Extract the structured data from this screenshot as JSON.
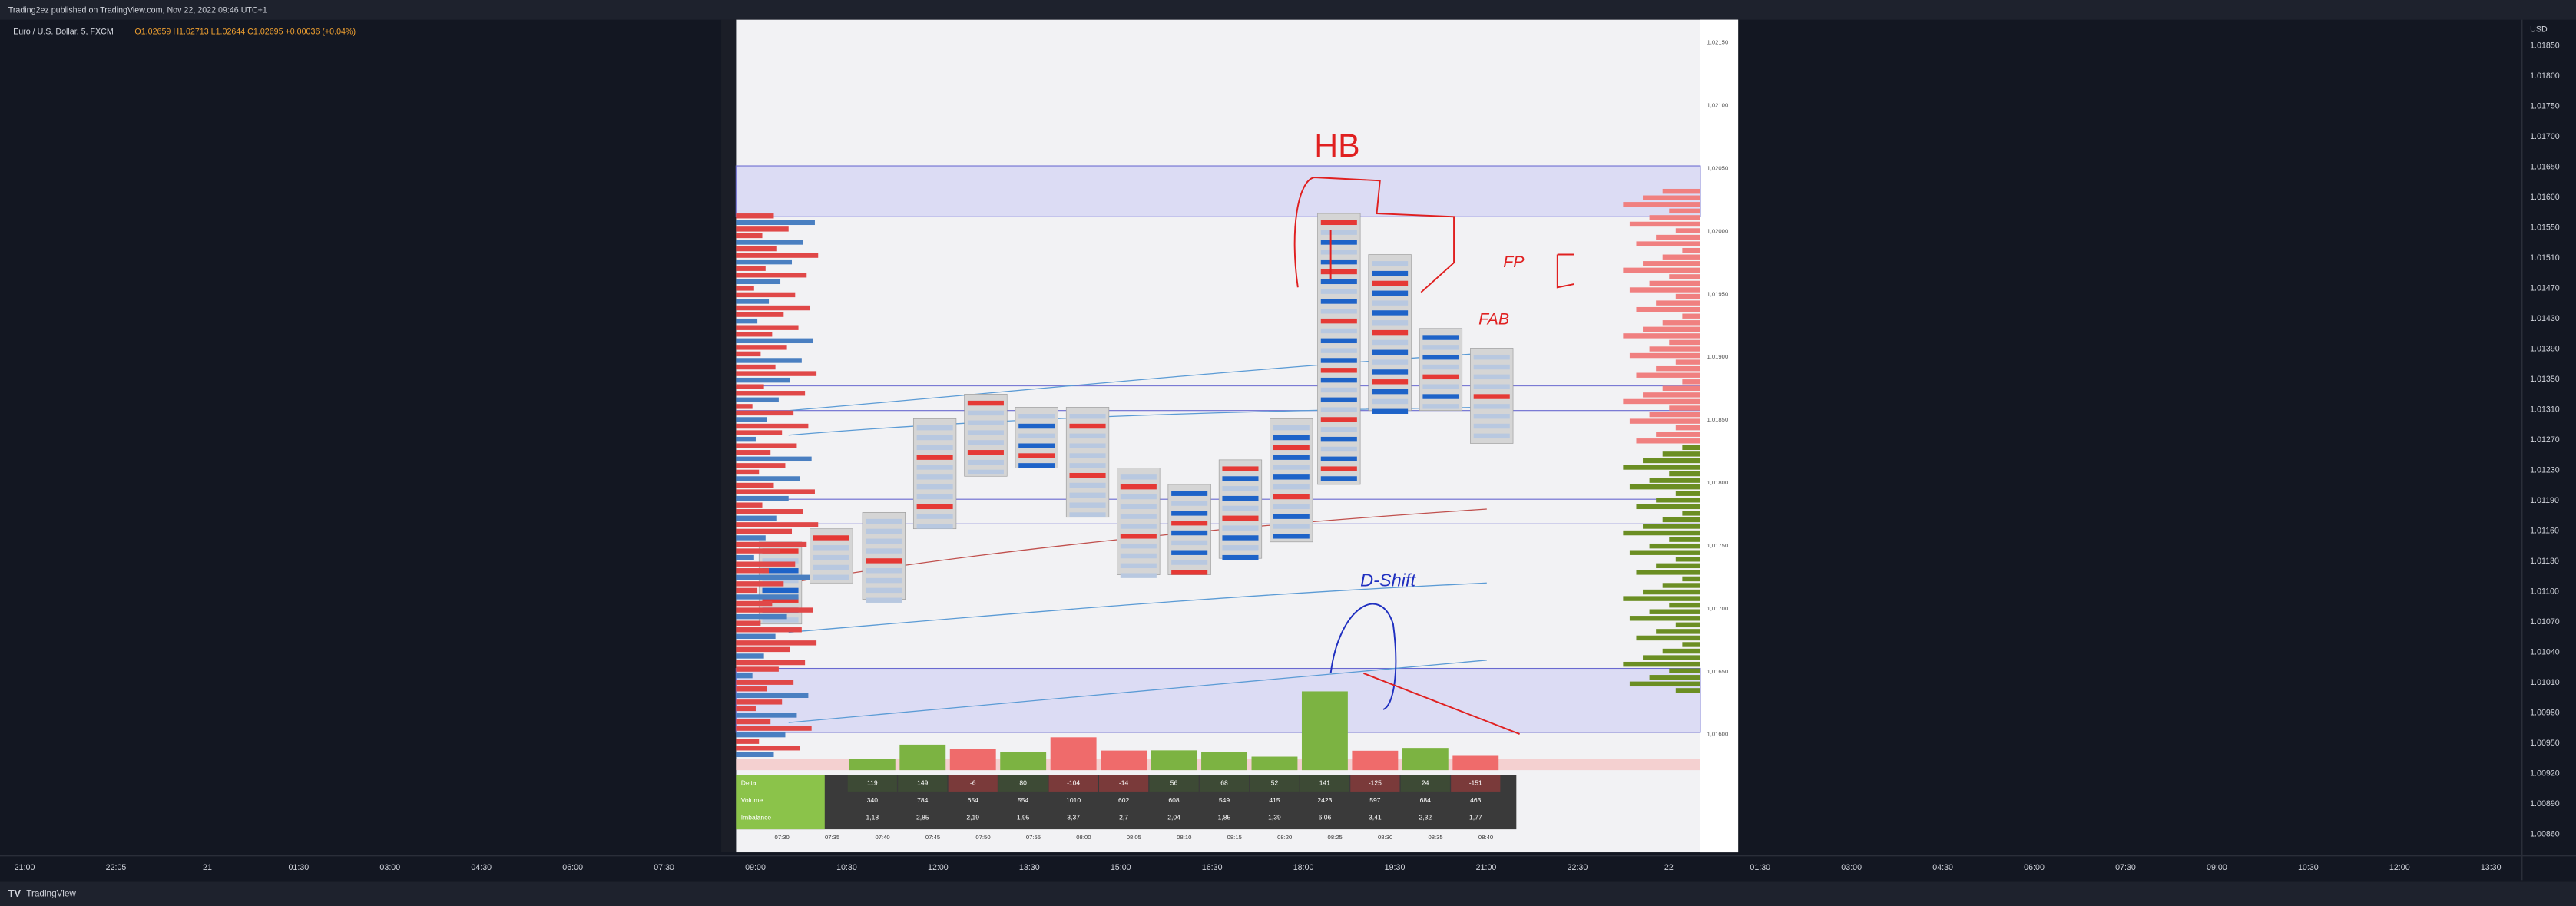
{
  "header": {
    "publisher": "Trading2ez published on TradingView.com, Nov 22, 2022 09:46 UTC+1",
    "symbol": "Euro / U.S. Dollar, 5, FXCM",
    "ohlc": "O1.02659 H1.02713 L1.02644 C1.02695 +0.00036 (+0.04%)"
  },
  "price_axis": {
    "currency": "USD",
    "labels": [
      "1.01850",
      "1.01800",
      "1.01750",
      "1.01700",
      "1.01650",
      "1.01600",
      "1.01550",
      "1.01510",
      "1.01470",
      "1.01430",
      "1.01390",
      "1.01350",
      "1.01310",
      "1.01270",
      "1.01230",
      "1.01190",
      "1.01160",
      "1.01130",
      "1.01100",
      "1.01070",
      "1.01040",
      "1.01010",
      "1.00980",
      "1.00950",
      "1.00920",
      "1.00890",
      "1.00860"
    ]
  },
  "time_axis": {
    "labels": [
      "21:00",
      "22:05",
      "21",
      "01:30",
      "03:00",
      "04:30",
      "06:00",
      "07:30",
      "09:00",
      "10:30",
      "12:00",
      "13:30",
      "15:00",
      "16:30",
      "18:00",
      "19:30",
      "21:00",
      "22:30",
      "22",
      "01:30",
      "03:00",
      "04:30",
      "06:00",
      "07:30",
      "09:00",
      "10:30",
      "12:00",
      "13:30"
    ]
  },
  "inner_chart": {
    "price_labels": [
      "1,02150",
      "1,02100",
      "1,02050",
      "1,02000",
      "1,01950",
      "1,01900",
      "1,01850",
      "1,01800",
      "1,01750",
      "1,01700",
      "1,01650",
      "1,01600"
    ],
    "time_labels": [
      "07:30",
      "07:35",
      "07:40",
      "07:45",
      "07:50",
      "07:55",
      "08:00",
      "08:05",
      "08:10",
      "08:15",
      "08:20",
      "08:25",
      "08:30",
      "08:35",
      "08:40"
    ],
    "annotations": {
      "hb": "HB",
      "fp": "FP",
      "fab": "FAB",
      "dshift": "D-Shift"
    },
    "table": {
      "row_labels": [
        "Delta",
        "Volume",
        "Imbalance"
      ],
      "delta": [
        119,
        149,
        -6,
        80,
        -104,
        -14,
        56,
        68,
        52,
        141,
        -125,
        24,
        -151
      ],
      "volume": [
        340,
        784,
        654,
        554,
        1010,
        602,
        608,
        549,
        415,
        2423,
        597,
        684,
        463
      ],
      "imbalance": [
        "1,18",
        "2,85",
        "2,19",
        "1,95",
        "3,37",
        "2,7",
        "2,04",
        "1,85",
        "1,39",
        "6,06",
        "3,41",
        "2,32",
        "1,77"
      ]
    }
  },
  "footer": {
    "brand": "TradingView"
  }
}
